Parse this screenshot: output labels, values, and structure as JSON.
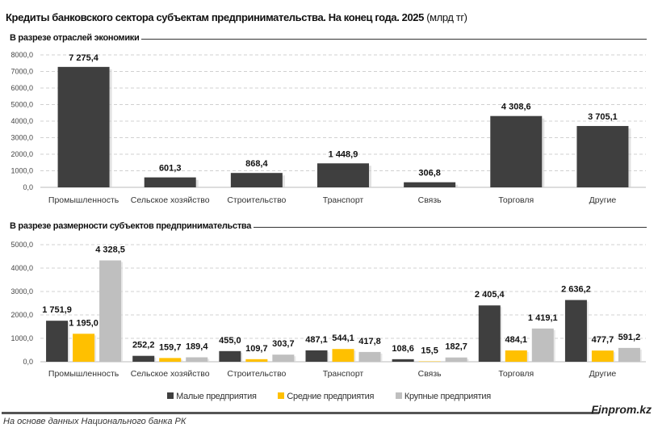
{
  "title": "Кредиты банковского сектора субъектам предпринимательства. На конец года. 2025",
  "title_unit": "(млрд тг)",
  "footer": {
    "source": "На основе данных Национального банка РК",
    "brand": "Finprom.kz"
  },
  "colors": {
    "small": "#3f3f3f",
    "medium": "#ffc000",
    "large": "#bfbfbf",
    "single": "#3f3f3f"
  },
  "chart_data": [
    {
      "type": "bar",
      "title": "В разрезе отраслей экономики",
      "categories": [
        "Промышленность",
        "Сельское хозяйство",
        "Строительство",
        "Транспорт",
        "Связь",
        "Торговля",
        "Другие"
      ],
      "values": [
        7275.4,
        601.3,
        868.4,
        1448.9,
        306.8,
        4308.6,
        3705.1
      ],
      "value_labels": [
        "7 275,4",
        "601,3",
        "868,4",
        "1 448,9",
        "306,8",
        "4 308,6",
        "3 705,1"
      ],
      "ylim": [
        0,
        8000
      ],
      "yticks": [
        "0,0",
        "1000,0",
        "2000,0",
        "3000,0",
        "4000,0",
        "5000,0",
        "6000,0",
        "7000,0",
        "8000,0"
      ],
      "grid": true
    },
    {
      "type": "bar",
      "title": "В разрезе размерности субъектов предпринимательства",
      "categories": [
        "Промышленность",
        "Сельское хозяйство",
        "Строительство",
        "Транспорт",
        "Связь",
        "Торговля",
        "Другие"
      ],
      "series": [
        {
          "name": "Малые предприятия",
          "values": [
            1751.9,
            252.2,
            455.0,
            487.1,
            108.6,
            2405.4,
            2636.2
          ],
          "labels": [
            "1 751,9",
            "252,2",
            "455,0",
            "487,1",
            "108,6",
            "2 405,4",
            "2 636,2"
          ]
        },
        {
          "name": "Средние предприятия",
          "values": [
            1195.0,
            159.7,
            109.7,
            544.1,
            15.5,
            484.1,
            477.7
          ],
          "labels": [
            "1 195,0",
            "159,7",
            "109,7",
            "544,1",
            "15,5",
            "484,1",
            "477,7"
          ]
        },
        {
          "name": "Крупные предприятия",
          "values": [
            4328.5,
            189.4,
            303.7,
            417.8,
            182.7,
            1419.1,
            591.2
          ],
          "labels": [
            "4 328,5",
            "189,4",
            "303,7",
            "417,8",
            "182,7",
            "1 419,1",
            "591,2"
          ]
        }
      ],
      "ylim": [
        0,
        5000
      ],
      "yticks": [
        "0,0",
        "1000,0",
        "2000,0",
        "3000,0",
        "4000,0",
        "5000,0"
      ],
      "grid": true,
      "legend": "bottom"
    }
  ]
}
